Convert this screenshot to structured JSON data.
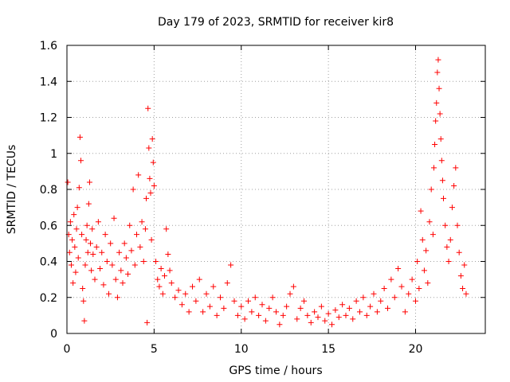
{
  "chart_data": {
    "type": "scatter",
    "title": "Day 179 of 2023, SRMTID for receiver kir8",
    "xlabel": "GPS time / hours",
    "ylabel": "SRMTID / TECUs",
    "xlim": [
      0,
      24
    ],
    "ylim": [
      0,
      1.6
    ],
    "xticks": [
      0,
      5,
      10,
      15,
      20
    ],
    "xtick_labels": [
      "0",
      "5",
      "10",
      "15",
      "20"
    ],
    "yticks": [
      0,
      0.2,
      0.4,
      0.6,
      0.8,
      1.0,
      1.2,
      1.4,
      1.6
    ],
    "ytick_labels": [
      "0",
      "0.2",
      "0.4",
      "0.6",
      "0.8",
      "1",
      "1.2",
      "1.4",
      "1.6"
    ],
    "grid": true,
    "marker": "+",
    "series": [
      {
        "name": "SRMTID",
        "color": "#ff0000",
        "points": [
          [
            0.05,
            0.84
          ],
          [
            0.1,
            0.55
          ],
          [
            0.15,
            0.45
          ],
          [
            0.2,
            0.62
          ],
          [
            0.25,
            0.38
          ],
          [
            0.3,
            0.52
          ],
          [
            0.35,
            0.28
          ],
          [
            0.4,
            0.66
          ],
          [
            0.45,
            0.48
          ],
          [
            0.5,
            0.34
          ],
          [
            0.55,
            0.58
          ],
          [
            0.6,
            0.7
          ],
          [
            0.65,
            0.42
          ],
          [
            0.7,
            0.81
          ],
          [
            0.75,
            1.09
          ],
          [
            0.8,
            0.96
          ],
          [
            0.85,
            0.55
          ],
          [
            0.9,
            0.25
          ],
          [
            0.95,
            0.18
          ],
          [
            1.0,
            0.07
          ],
          [
            1.05,
            0.38
          ],
          [
            1.1,
            0.52
          ],
          [
            1.15,
            0.6
          ],
          [
            1.2,
            0.45
          ],
          [
            1.25,
            0.72
          ],
          [
            1.3,
            0.84
          ],
          [
            1.35,
            0.5
          ],
          [
            1.4,
            0.35
          ],
          [
            1.45,
            0.58
          ],
          [
            1.5,
            0.44
          ],
          [
            1.6,
            0.3
          ],
          [
            1.7,
            0.48
          ],
          [
            1.8,
            0.62
          ],
          [
            1.9,
            0.36
          ],
          [
            2.0,
            0.45
          ],
          [
            2.1,
            0.27
          ],
          [
            2.2,
            0.55
          ],
          [
            2.3,
            0.4
          ],
          [
            2.4,
            0.22
          ],
          [
            2.5,
            0.5
          ],
          [
            2.6,
            0.38
          ],
          [
            2.7,
            0.64
          ],
          [
            2.8,
            0.3
          ],
          [
            2.9,
            0.2
          ],
          [
            3.0,
            0.45
          ],
          [
            3.1,
            0.35
          ],
          [
            3.2,
            0.28
          ],
          [
            3.3,
            0.5
          ],
          [
            3.4,
            0.42
          ],
          [
            3.5,
            0.33
          ],
          [
            3.6,
            0.6
          ],
          [
            3.7,
            0.46
          ],
          [
            3.8,
            0.8
          ],
          [
            3.9,
            0.38
          ],
          [
            4.0,
            0.55
          ],
          [
            4.1,
            0.88
          ],
          [
            4.2,
            0.48
          ],
          [
            4.3,
            0.62
          ],
          [
            4.4,
            0.4
          ],
          [
            4.5,
            0.58
          ],
          [
            4.55,
            0.75
          ],
          [
            4.6,
            0.06
          ],
          [
            4.65,
            1.25
          ],
          [
            4.7,
            1.03
          ],
          [
            4.75,
            0.86
          ],
          [
            4.8,
            0.78
          ],
          [
            4.85,
            0.52
          ],
          [
            4.9,
            1.08
          ],
          [
            4.95,
            0.95
          ],
          [
            5.0,
            0.82
          ],
          [
            5.1,
            0.4
          ],
          [
            5.2,
            0.3
          ],
          [
            5.3,
            0.26
          ],
          [
            5.4,
            0.36
          ],
          [
            5.5,
            0.22
          ],
          [
            5.6,
            0.32
          ],
          [
            5.7,
            0.58
          ],
          [
            5.8,
            0.44
          ],
          [
            5.9,
            0.35
          ],
          [
            6.0,
            0.28
          ],
          [
            6.2,
            0.2
          ],
          [
            6.4,
            0.24
          ],
          [
            6.6,
            0.16
          ],
          [
            6.8,
            0.22
          ],
          [
            7.0,
            0.12
          ],
          [
            7.2,
            0.26
          ],
          [
            7.4,
            0.18
          ],
          [
            7.6,
            0.3
          ],
          [
            7.8,
            0.12
          ],
          [
            8.0,
            0.22
          ],
          [
            8.2,
            0.15
          ],
          [
            8.4,
            0.26
          ],
          [
            8.6,
            0.1
          ],
          [
            8.8,
            0.2
          ],
          [
            9.0,
            0.14
          ],
          [
            9.2,
            0.28
          ],
          [
            9.4,
            0.38
          ],
          [
            9.6,
            0.18
          ],
          [
            9.8,
            0.1
          ],
          [
            10.0,
            0.15
          ],
          [
            10.2,
            0.08
          ],
          [
            10.4,
            0.18
          ],
          [
            10.6,
            0.12
          ],
          [
            10.8,
            0.2
          ],
          [
            11.0,
            0.1
          ],
          [
            11.2,
            0.16
          ],
          [
            11.4,
            0.07
          ],
          [
            11.6,
            0.14
          ],
          [
            11.8,
            0.2
          ],
          [
            12.0,
            0.12
          ],
          [
            12.2,
            0.05
          ],
          [
            12.4,
            0.1
          ],
          [
            12.6,
            0.15
          ],
          [
            12.8,
            0.22
          ],
          [
            13.0,
            0.26
          ],
          [
            13.2,
            0.08
          ],
          [
            13.4,
            0.14
          ],
          [
            13.6,
            0.18
          ],
          [
            13.8,
            0.1
          ],
          [
            14.0,
            0.06
          ],
          [
            14.2,
            0.12
          ],
          [
            14.4,
            0.09
          ],
          [
            14.6,
            0.15
          ],
          [
            14.8,
            0.07
          ],
          [
            15.0,
            0.11
          ],
          [
            15.2,
            0.05
          ],
          [
            15.4,
            0.13
          ],
          [
            15.6,
            0.09
          ],
          [
            15.8,
            0.16
          ],
          [
            16.0,
            0.1
          ],
          [
            16.2,
            0.14
          ],
          [
            16.4,
            0.08
          ],
          [
            16.6,
            0.18
          ],
          [
            16.8,
            0.12
          ],
          [
            17.0,
            0.2
          ],
          [
            17.2,
            0.1
          ],
          [
            17.4,
            0.15
          ],
          [
            17.6,
            0.22
          ],
          [
            17.8,
            0.12
          ],
          [
            18.0,
            0.18
          ],
          [
            18.2,
            0.25
          ],
          [
            18.4,
            0.14
          ],
          [
            18.6,
            0.3
          ],
          [
            18.8,
            0.2
          ],
          [
            19.0,
            0.36
          ],
          [
            19.2,
            0.26
          ],
          [
            19.4,
            0.12
          ],
          [
            19.6,
            0.22
          ],
          [
            19.8,
            0.3
          ],
          [
            20.0,
            0.18
          ],
          [
            20.1,
            0.4
          ],
          [
            20.2,
            0.25
          ],
          [
            20.3,
            0.68
          ],
          [
            20.4,
            0.52
          ],
          [
            20.5,
            0.35
          ],
          [
            20.6,
            0.46
          ],
          [
            20.7,
            0.28
          ],
          [
            20.8,
            0.62
          ],
          [
            20.9,
            0.8
          ],
          [
            21.0,
            0.55
          ],
          [
            21.05,
            0.92
          ],
          [
            21.1,
            1.05
          ],
          [
            21.15,
            1.18
          ],
          [
            21.2,
            1.28
          ],
          [
            21.25,
            1.45
          ],
          [
            21.3,
            1.52
          ],
          [
            21.35,
            1.36
          ],
          [
            21.4,
            1.22
          ],
          [
            21.45,
            1.08
          ],
          [
            21.5,
            0.96
          ],
          [
            21.55,
            0.85
          ],
          [
            21.6,
            0.75
          ],
          [
            21.7,
            0.6
          ],
          [
            21.8,
            0.48
          ],
          [
            21.9,
            0.4
          ],
          [
            22.0,
            0.52
          ],
          [
            22.1,
            0.7
          ],
          [
            22.2,
            0.82
          ],
          [
            22.3,
            0.92
          ],
          [
            22.4,
            0.6
          ],
          [
            22.5,
            0.45
          ],
          [
            22.6,
            0.32
          ],
          [
            22.7,
            0.25
          ],
          [
            22.8,
            0.38
          ],
          [
            22.9,
            0.22
          ]
        ]
      }
    ]
  }
}
